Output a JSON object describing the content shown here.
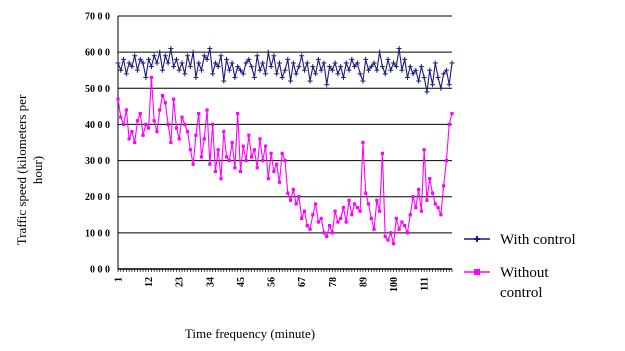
{
  "chart_data": {
    "type": "line",
    "title": "",
    "xlabel": "Time frequency (minute)",
    "ylabel": "Traffic speed (kilometers per hour)",
    "ylim": [
      0,
      70
    ],
    "xlim": [
      1,
      121
    ],
    "grid": true,
    "legend_placement": "right",
    "y_ticks": [
      "0 0 0",
      "10 0 0",
      "20 0 0",
      "30 0 0",
      "40 0 0",
      "50 0 0",
      "60 0 0",
      "70 0 0"
    ],
    "x_ticks": [
      1,
      12,
      23,
      34,
      45,
      56,
      67,
      78,
      89,
      100,
      111
    ],
    "x": [
      1,
      2,
      3,
      4,
      5,
      6,
      7,
      8,
      9,
      10,
      11,
      12,
      13,
      14,
      15,
      16,
      17,
      18,
      19,
      20,
      21,
      22,
      23,
      24,
      25,
      26,
      27,
      28,
      29,
      30,
      31,
      32,
      33,
      34,
      35,
      36,
      37,
      38,
      39,
      40,
      41,
      42,
      43,
      44,
      45,
      46,
      47,
      48,
      49,
      50,
      51,
      52,
      53,
      54,
      55,
      56,
      57,
      58,
      59,
      60,
      61,
      62,
      63,
      64,
      65,
      66,
      67,
      68,
      69,
      70,
      71,
      72,
      73,
      74,
      75,
      76,
      77,
      78,
      79,
      80,
      81,
      82,
      83,
      84,
      85,
      86,
      87,
      88,
      89,
      90,
      91,
      92,
      93,
      94,
      95,
      96,
      97,
      98,
      99,
      100,
      101,
      102,
      103,
      104,
      105,
      106,
      107,
      108,
      109,
      110,
      111,
      112,
      113,
      114,
      115,
      116,
      117,
      118,
      119,
      120,
      121
    ],
    "series": [
      {
        "name": "With control",
        "color": "#1a1a7a",
        "marker": "cross",
        "values": [
          57,
          55,
          58,
          54,
          57,
          56,
          59,
          55,
          58,
          57,
          53,
          58,
          56,
          59,
          57,
          60,
          55,
          59,
          57,
          61,
          56,
          58,
          55,
          57,
          54,
          59,
          56,
          60,
          53,
          57,
          55,
          59,
          58,
          61,
          54,
          57,
          56,
          59,
          52,
          58,
          55,
          57,
          53,
          56,
          55,
          54,
          57,
          58,
          56,
          53,
          59,
          55,
          57,
          54,
          60,
          56,
          59,
          54,
          57,
          53,
          55,
          58,
          52,
          57,
          54,
          56,
          59,
          55,
          57,
          52,
          56,
          54,
          58,
          55,
          57,
          51,
          56,
          55,
          57,
          54,
          56,
          53,
          57,
          55,
          58,
          56,
          57,
          54,
          52,
          58,
          55,
          56,
          57,
          55,
          60,
          56,
          54,
          58,
          55,
          57,
          56,
          61,
          55,
          58,
          53,
          56,
          54,
          55,
          52,
          56,
          53,
          49,
          55,
          51,
          57,
          53,
          50,
          54,
          55,
          51,
          57
        ]
      },
      {
        "name": "Without control",
        "color": "#ff00ff",
        "marker": "square",
        "values": [
          47,
          42,
          40,
          44,
          36,
          38,
          35,
          41,
          43,
          37,
          40,
          39,
          53,
          41,
          38,
          44,
          48,
          46,
          40,
          35,
          47,
          39,
          36,
          42,
          40,
          38,
          33,
          29,
          37,
          43,
          31,
          36,
          44,
          29,
          40,
          27,
          33,
          25,
          38,
          31,
          30,
          35,
          28,
          43,
          27,
          34,
          30,
          37,
          31,
          33,
          28,
          36,
          30,
          34,
          25,
          32,
          27,
          29,
          24,
          32,
          30,
          21,
          19,
          22,
          18,
          20,
          14,
          16,
          12,
          11,
          15,
          18,
          13,
          14,
          10,
          9,
          12,
          10,
          16,
          13,
          14,
          17,
          13,
          19,
          15,
          18,
          17,
          16,
          35,
          21,
          18,
          14,
          11,
          19,
          16,
          32,
          9,
          8,
          10,
          7,
          14,
          11,
          13,
          12,
          10,
          15,
          20,
          17,
          22,
          16,
          33,
          19,
          25,
          21,
          18,
          17,
          15,
          23,
          30,
          40,
          43
        ]
      }
    ]
  }
}
